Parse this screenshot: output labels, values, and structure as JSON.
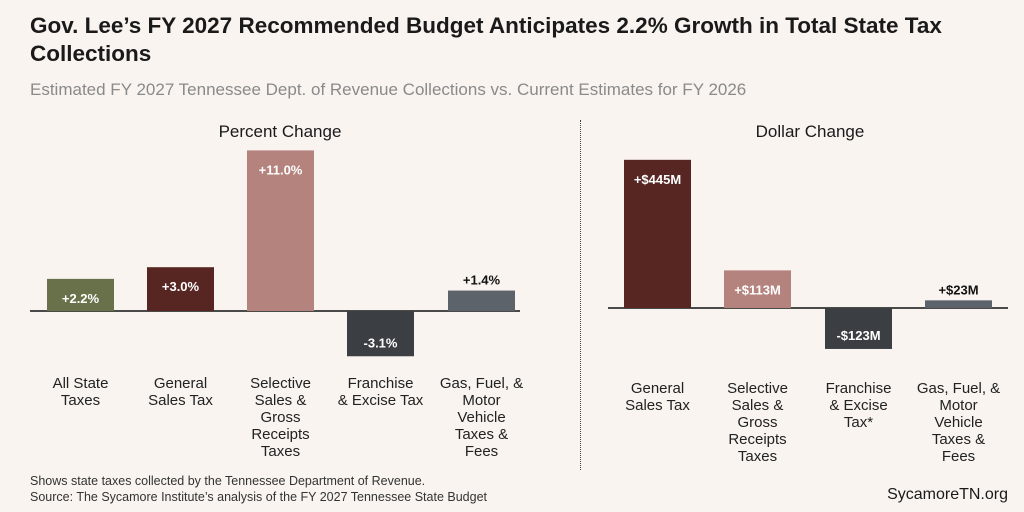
{
  "title": "Gov. Lee’s FY 2027 Recommended Budget Anticipates 2.2% Growth in Total State Tax Collections",
  "subtitle": "Estimated FY 2027 Tennessee Dept. of Revenue Collections vs. Current Estimates for FY 2026",
  "notes": [
    "Shows state taxes collected by the Tennessee Department of Revenue.",
    "Source: The Sycamore Institute’s analysis of the FY 2027 Tennessee State Budget"
  ],
  "brand": "SycamoreTN.org",
  "chart_data": [
    {
      "type": "bar",
      "title": "Percent Change",
      "unit": "%",
      "categories": [
        [
          "All State",
          "Taxes"
        ],
        [
          "General",
          "Sales Tax"
        ],
        [
          "Selective",
          "Sales &",
          "Gross",
          "Receipts",
          "Taxes"
        ],
        [
          "Franchise",
          "& Excise Tax"
        ],
        [
          "Gas, Fuel, &",
          "Motor",
          "Vehicle",
          "Taxes &",
          "Fees"
        ]
      ],
      "values": [
        2.2,
        3.0,
        11.0,
        -3.1,
        1.4
      ],
      "labels": [
        "+2.2%",
        "+3.0%",
        "+11.0%",
        "-3.1%",
        "+1.4%"
      ],
      "colors": [
        "#68714a",
        "#572622",
        "#b5837e",
        "#3b3f43",
        "#5c636a"
      ]
    },
    {
      "type": "bar",
      "title": "Dollar Change",
      "unit": "$M",
      "categories": [
        [
          "General",
          "Sales Tax"
        ],
        [
          "Selective",
          "Sales &",
          "Gross",
          "Receipts",
          "Taxes"
        ],
        [
          "Franchise",
          "& Excise",
          "Tax*"
        ],
        [
          "Gas, Fuel, &",
          "Motor",
          "Vehicle",
          "Taxes &",
          "Fees"
        ]
      ],
      "values": [
        445,
        113,
        -123,
        23
      ],
      "labels": [
        "+$445M",
        "+$113M",
        "-$123M",
        "+$23M"
      ],
      "colors": [
        "#572622",
        "#b5837e",
        "#3b3f43",
        "#5c636a"
      ]
    }
  ]
}
